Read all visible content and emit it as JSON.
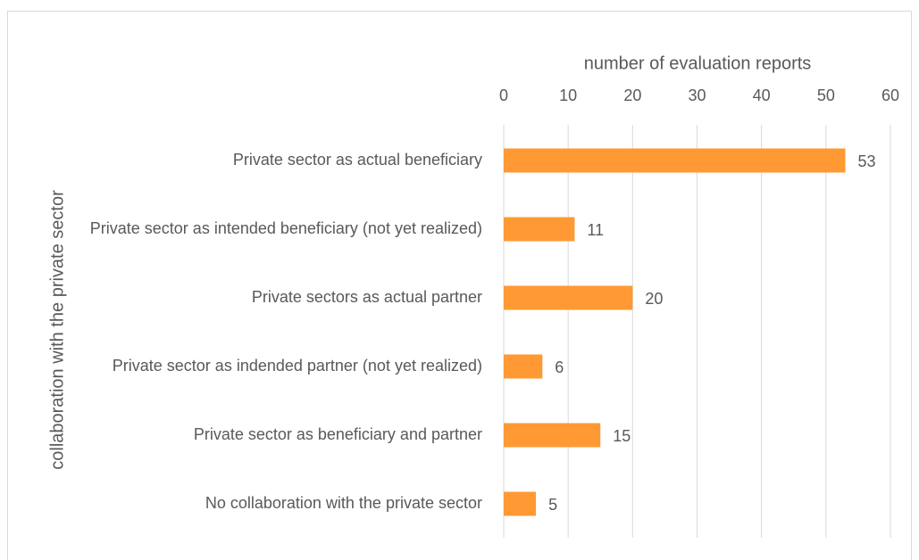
{
  "chart_data": {
    "type": "bar",
    "orientation": "horizontal",
    "x_label": "number of evaluation reports",
    "y_label": "collaboration with the private sector",
    "categories": [
      "Private sector as actual beneficiary",
      "Private sector as intended beneficiary (not yet realized)",
      "Private sectors as actual partner",
      "Private sector as indended partner (not yet realized)",
      "Private sector as beneficiary and partner",
      "No collaboration with the private sector"
    ],
    "values": [
      53,
      11,
      20,
      6,
      15,
      5
    ],
    "color": "#ff9933",
    "xlim": [
      0,
      60
    ],
    "xticks": [
      0,
      10,
      20,
      30,
      40,
      50,
      60
    ],
    "grid": true
  }
}
